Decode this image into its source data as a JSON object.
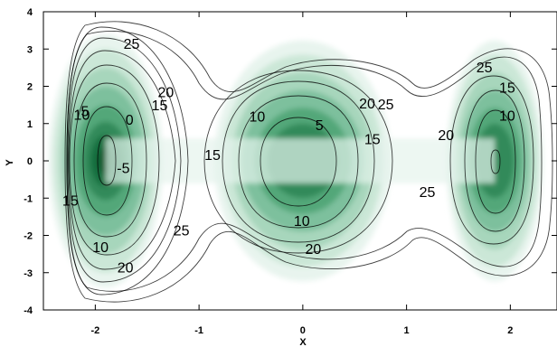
{
  "chart_data": {
    "type": "heatmap",
    "subtype": "filled contour with contour lines",
    "title": "",
    "xlabel": "X",
    "ylabel": "Y",
    "xlim": [
      -2.5,
      2.45
    ],
    "ylim": [
      -4,
      4
    ],
    "xticks": [
      -2,
      -1,
      0,
      1,
      2
    ],
    "yticks": [
      -4,
      -3,
      -2,
      -1,
      0,
      1,
      2,
      3,
      4
    ],
    "grid": false,
    "colormap": {
      "low": "#0b5a2d",
      "high": "#ffffff"
    },
    "wells": [
      {
        "x": -1.9,
        "y": 0.0,
        "min_value": -7
      },
      {
        "x": 0.0,
        "y": 0.0,
        "min_value": 0
      },
      {
        "x": 1.85,
        "y": 0.0,
        "min_value": 2
      }
    ],
    "contour_levels": [
      -5,
      0,
      5,
      10,
      15,
      20,
      25
    ],
    "contour_labels": [
      {
        "text": "25",
        "x": -1.65,
        "y": 3.15
      },
      {
        "text": "20",
        "x": -1.32,
        "y": 1.85
      },
      {
        "text": "15",
        "x": -1.38,
        "y": 1.5
      },
      {
        "text": "10",
        "x": -2.13,
        "y": 1.25
      },
      {
        "text": "5",
        "x": -2.1,
        "y": 1.35
      },
      {
        "text": "0",
        "x": -1.67,
        "y": 1.12
      },
      {
        "text": "-5",
        "x": -1.73,
        "y": -0.18
      },
      {
        "text": "15",
        "x": -2.24,
        "y": -1.05
      },
      {
        "text": "10",
        "x": -1.95,
        "y": -2.3
      },
      {
        "text": "20",
        "x": -1.71,
        "y": -2.85
      },
      {
        "text": "25",
        "x": -1.17,
        "y": -1.85
      },
      {
        "text": "15",
        "x": -0.87,
        "y": 0.17
      },
      {
        "text": "10",
        "x": -0.44,
        "y": 1.2
      },
      {
        "text": "5",
        "x": 0.16,
        "y": 0.97
      },
      {
        "text": "10",
        "x": -0.01,
        "y": -1.6
      },
      {
        "text": "20",
        "x": 0.1,
        "y": -2.35
      },
      {
        "text": "20",
        "x": 0.62,
        "y": 1.55
      },
      {
        "text": "25",
        "x": 0.8,
        "y": 1.53
      },
      {
        "text": "15",
        "x": 0.67,
        "y": 0.6
      },
      {
        "text": "20",
        "x": 1.38,
        "y": 0.7
      },
      {
        "text": "25",
        "x": 1.2,
        "y": -0.83
      },
      {
        "text": "25",
        "x": 1.75,
        "y": 2.52
      },
      {
        "text": "15",
        "x": 1.97,
        "y": 1.97
      },
      {
        "text": "10",
        "x": 1.97,
        "y": 1.22
      }
    ]
  }
}
